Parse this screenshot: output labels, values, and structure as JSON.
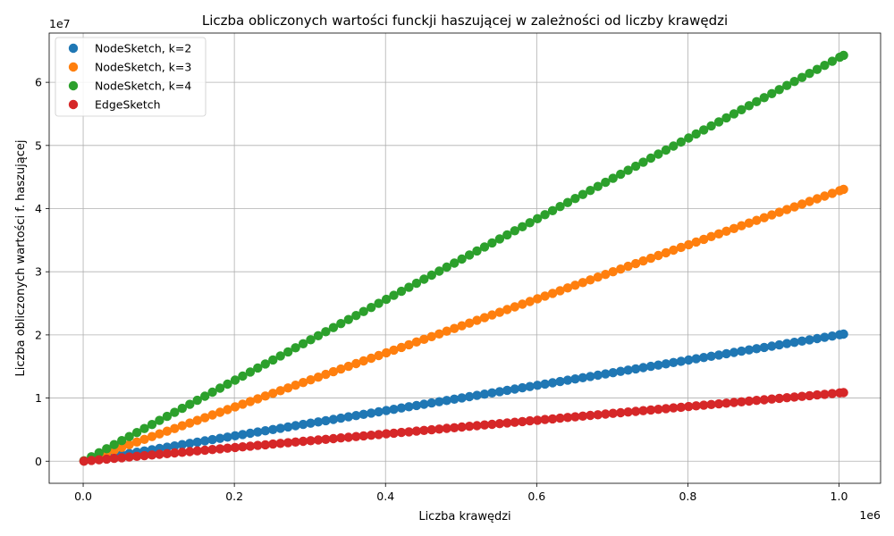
{
  "chart_data": {
    "type": "scatter",
    "title": "Liczba obliczonych wartości funckji haszującej w zależności od liczby krawędzi",
    "xlabel": "Liczba krawędzi",
    "ylabel": "Liczba obliczonych wartości f. haszującej",
    "x_multiplier_label": "1e6",
    "y_multiplier_label": "1e7",
    "xlim": [
      -45000,
      1055000
    ],
    "ylim": [
      -3500000,
      67800000
    ],
    "x_ticks": [
      0,
      200000,
      400000,
      600000,
      800000,
      1000000
    ],
    "x_tick_labels": [
      "0.0",
      "0.2",
      "0.4",
      "0.6",
      "0.8",
      "1.0"
    ],
    "y_ticks": [
      0,
      10000000,
      20000000,
      30000000,
      40000000,
      50000000,
      60000000
    ],
    "y_tick_labels": [
      "0",
      "1",
      "2",
      "3",
      "4",
      "5",
      "6"
    ],
    "grid": true,
    "legend_position": "top-left",
    "x_range": [
      1000,
      1006000
    ],
    "x_step": 10000,
    "series": [
      {
        "name": "NodeSketch, k=2",
        "color": "#1f77b4",
        "slope": 20.0
      },
      {
        "name": "NodeSketch, k=3",
        "color": "#ff7f0e",
        "slope": 42.8
      },
      {
        "name": "NodeSketch, k=4",
        "color": "#2ca02c",
        "slope": 63.9
      },
      {
        "name": "EdgeSketch",
        "color": "#d62728",
        "slope": 10.8
      }
    ]
  }
}
